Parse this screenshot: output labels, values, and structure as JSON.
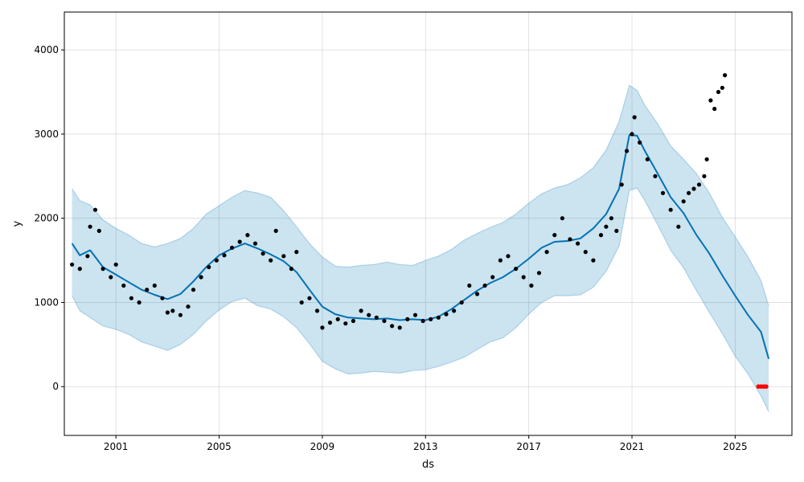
{
  "chart_data": {
    "type": "line",
    "title": "",
    "xlabel": "ds",
    "ylabel": "y",
    "xlim": [
      1999.0,
      2027.2
    ],
    "ylim": [
      -580,
      4450
    ],
    "x_ticks": [
      {
        "value": 2001,
        "label": "2001"
      },
      {
        "value": 2005,
        "label": "2005"
      },
      {
        "value": 2009,
        "label": "2009"
      },
      {
        "value": 2013,
        "label": "2013"
      },
      {
        "value": 2017,
        "label": "2017"
      },
      {
        "value": 2021,
        "label": "2021"
      },
      {
        "value": 2025,
        "label": "2025"
      }
    ],
    "y_ticks": [
      {
        "value": 0,
        "label": "0"
      },
      {
        "value": 1000,
        "label": "1000"
      },
      {
        "value": 2000,
        "label": "2000"
      },
      {
        "value": 3000,
        "label": "3000"
      },
      {
        "value": 4000,
        "label": "4000"
      }
    ],
    "grid": true,
    "colors": {
      "forecast_line": "#0072B2",
      "interval_fill": "#0072B2",
      "observed_points": "#000000",
      "highlight_points": "#ff0000",
      "grid": "#b0b0b0"
    },
    "series": [
      {
        "role": "forecast",
        "x": [
          1999.3,
          1999.6,
          2000.0,
          2000.5,
          2001.0,
          2001.5,
          2002.0,
          2002.5,
          2003.0,
          2003.5,
          2004.0,
          2004.5,
          2005.0,
          2005.5,
          2006.0,
          2006.5,
          2007.0,
          2007.5,
          2008.0,
          2008.5,
          2009.0,
          2009.5,
          2010.0,
          2010.5,
          2011.0,
          2011.5,
          2012.0,
          2012.5,
          2013.0,
          2013.5,
          2014.0,
          2014.5,
          2015.0,
          2015.5,
          2016.0,
          2016.5,
          2017.0,
          2017.5,
          2018.0,
          2018.5,
          2019.0,
          2019.5,
          2020.0,
          2020.5,
          2020.9,
          2021.2,
          2021.5,
          2022.0,
          2022.5,
          2023.0,
          2023.5,
          2024.0,
          2024.5,
          2025.0,
          2025.5,
          2026.0,
          2026.3
        ],
        "y": [
          1700,
          1560,
          1620,
          1420,
          1330,
          1240,
          1150,
          1090,
          1040,
          1100,
          1250,
          1420,
          1560,
          1640,
          1700,
          1640,
          1570,
          1490,
          1360,
          1150,
          950,
          860,
          820,
          810,
          800,
          810,
          790,
          800,
          790,
          830,
          920,
          1030,
          1140,
          1230,
          1300,
          1400,
          1520,
          1650,
          1720,
          1730,
          1760,
          1880,
          2050,
          2350,
          2990,
          2980,
          2800,
          2530,
          2250,
          2060,
          1800,
          1580,
          1320,
          1080,
          850,
          650,
          330
        ]
      },
      {
        "role": "interval_upper",
        "x": [
          1999.3,
          1999.6,
          2000.0,
          2000.5,
          2001.0,
          2001.5,
          2002.0,
          2002.5,
          2003.0,
          2003.5,
          2004.0,
          2004.5,
          2005.0,
          2005.5,
          2006.0,
          2006.5,
          2007.0,
          2007.5,
          2008.0,
          2008.5,
          2009.0,
          2009.5,
          2010.0,
          2010.5,
          2011.0,
          2011.5,
          2012.0,
          2012.5,
          2013.0,
          2013.5,
          2014.0,
          2014.5,
          2015.0,
          2015.5,
          2016.0,
          2016.5,
          2017.0,
          2017.5,
          2018.0,
          2018.5,
          2019.0,
          2019.5,
          2020.0,
          2020.5,
          2020.9,
          2021.2,
          2021.5,
          2022.0,
          2022.5,
          2023.0,
          2023.5,
          2024.0,
          2024.5,
          2025.0,
          2025.5,
          2026.0,
          2026.3
        ],
        "y": [
          2350,
          2210,
          2160,
          1980,
          1880,
          1800,
          1700,
          1660,
          1700,
          1760,
          1880,
          2050,
          2150,
          2250,
          2330,
          2300,
          2250,
          2090,
          1900,
          1700,
          1540,
          1430,
          1420,
          1440,
          1450,
          1480,
          1450,
          1440,
          1500,
          1550,
          1630,
          1740,
          1820,
          1890,
          1950,
          2050,
          2180,
          2290,
          2360,
          2400,
          2480,
          2600,
          2810,
          3150,
          3580,
          3520,
          3340,
          3120,
          2860,
          2700,
          2530,
          2300,
          2010,
          1780,
          1540,
          1260,
          960
        ]
      },
      {
        "role": "interval_lower",
        "x": [
          1999.3,
          1999.6,
          2000.0,
          2000.5,
          2001.0,
          2001.5,
          2002.0,
          2002.5,
          2003.0,
          2003.5,
          2004.0,
          2004.5,
          2005.0,
          2005.5,
          2006.0,
          2006.5,
          2007.0,
          2007.5,
          2008.0,
          2008.5,
          2009.0,
          2009.5,
          2010.0,
          2010.5,
          2011.0,
          2011.5,
          2012.0,
          2012.5,
          2013.0,
          2013.5,
          2014.0,
          2014.5,
          2015.0,
          2015.5,
          2016.0,
          2016.5,
          2017.0,
          2017.5,
          2018.0,
          2018.5,
          2019.0,
          2019.5,
          2020.0,
          2020.5,
          2020.9,
          2021.2,
          2021.5,
          2022.0,
          2022.5,
          2023.0,
          2023.5,
          2024.0,
          2024.5,
          2025.0,
          2025.5,
          2026.0,
          2026.3
        ],
        "y": [
          1080,
          900,
          820,
          720,
          680,
          620,
          530,
          480,
          430,
          500,
          620,
          780,
          910,
          1010,
          1050,
          960,
          920,
          830,
          700,
          510,
          300,
          210,
          150,
          160,
          180,
          170,
          160,
          190,
          200,
          240,
          290,
          350,
          440,
          530,
          580,
          700,
          860,
          1000,
          1080,
          1080,
          1090,
          1180,
          1370,
          1670,
          2330,
          2360,
          2210,
          1920,
          1620,
          1410,
          1140,
          880,
          630,
          360,
          150,
          -110,
          -300
        ]
      },
      {
        "role": "observed",
        "x": [
          1999.3,
          1999.6,
          1999.9,
          2000.0,
          2000.2,
          2000.35,
          2000.5,
          2000.8,
          2001.0,
          2001.3,
          2001.6,
          2001.9,
          2002.2,
          2002.5,
          2002.8,
          2003.0,
          2003.2,
          2003.5,
          2003.8,
          2004.0,
          2004.3,
          2004.6,
          2004.9,
          2005.2,
          2005.5,
          2005.8,
          2006.1,
          2006.4,
          2006.7,
          2007.0,
          2007.2,
          2007.5,
          2007.8,
          2008.0,
          2008.2,
          2008.5,
          2008.8,
          2009.0,
          2009.3,
          2009.6,
          2009.9,
          2010.2,
          2010.5,
          2010.8,
          2011.1,
          2011.4,
          2011.7,
          2012.0,
          2012.3,
          2012.6,
          2012.9,
          2013.2,
          2013.5,
          2013.8,
          2014.1,
          2014.4,
          2014.7,
          2015.0,
          2015.3,
          2015.6,
          2015.9,
          2016.2,
          2016.5,
          2016.8,
          2017.1,
          2017.4,
          2017.7,
          2018.0,
          2018.3,
          2018.6,
          2018.9,
          2019.2,
          2019.5,
          2019.8,
          2020.0,
          2020.2,
          2020.4,
          2020.6,
          2020.8,
          2021.0,
          2021.1,
          2021.3,
          2021.6,
          2021.9,
          2022.2,
          2022.5,
          2022.8,
          2023.0,
          2023.2,
          2023.4,
          2023.6,
          2023.8,
          2023.9,
          2024.05,
          2024.2,
          2024.35,
          2024.5,
          2024.6
        ],
        "y": [
          1450,
          1400,
          1550,
          1900,
          2100,
          1850,
          1400,
          1300,
          1450,
          1200,
          1050,
          1000,
          1150,
          1200,
          1050,
          880,
          900,
          850,
          950,
          1150,
          1300,
          1420,
          1500,
          1560,
          1650,
          1720,
          1800,
          1700,
          1580,
          1500,
          1850,
          1550,
          1400,
          1600,
          1000,
          1050,
          900,
          700,
          760,
          800,
          750,
          780,
          900,
          850,
          820,
          780,
          720,
          700,
          800,
          850,
          780,
          800,
          820,
          860,
          900,
          1000,
          1200,
          1100,
          1200,
          1300,
          1500,
          1550,
          1400,
          1300,
          1200,
          1350,
          1600,
          1800,
          2000,
          1750,
          1700,
          1600,
          1500,
          1800,
          1900,
          2000,
          1850,
          2400,
          2800,
          3000,
          3200,
          2900,
          2700,
          2500,
          2300,
          2100,
          1900,
          2200,
          2300,
          2350,
          2400,
          2500,
          2700,
          3400,
          3300,
          3500,
          3550,
          3700
        ],
        "highlight_x": [
          2025.9,
          2026.0,
          2026.1,
          2026.2
        ],
        "highlight_y": [
          0,
          0,
          0,
          0
        ]
      }
    ]
  }
}
